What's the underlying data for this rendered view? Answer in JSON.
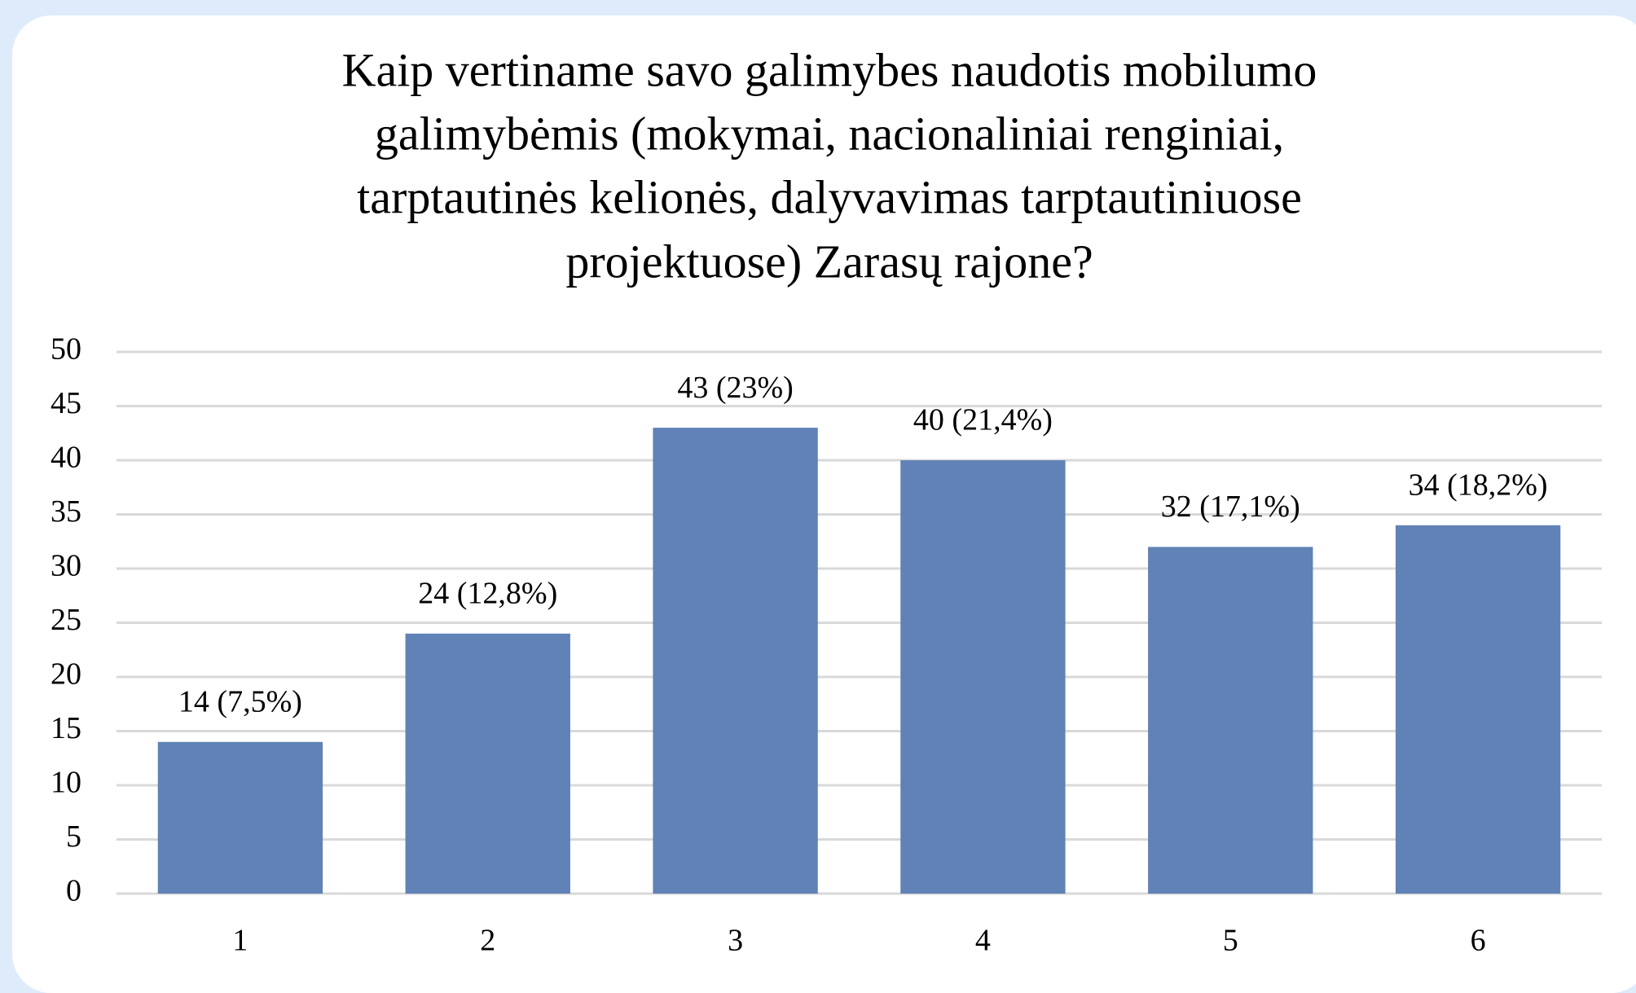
{
  "chart_data": {
    "type": "bar",
    "title": [
      "Kaip vertiname savo galimybes naudotis mobilumo",
      "galimybėmis (mokymai, nacionaliniai renginiai,",
      "tarptautinės kelionės, dalyvavimas tarptautiniuose",
      "projektuose) Zarasų rajone?"
    ],
    "categories": [
      "1",
      "2",
      "3",
      "4",
      "5",
      "6"
    ],
    "values": [
      14,
      24,
      43,
      40,
      32,
      34
    ],
    "value_labels": [
      "14 (7,5%)",
      "24 (12,8%)",
      "43 (23%)",
      "40 (21,4%)",
      "32 (17,1%)",
      "34 (18,2%)"
    ],
    "color": "#6082b6",
    "ylim": [
      0,
      50
    ],
    "yticks": [
      0,
      5,
      10,
      15,
      20,
      25,
      30,
      35,
      40,
      45,
      50
    ],
    "grid": true
  }
}
